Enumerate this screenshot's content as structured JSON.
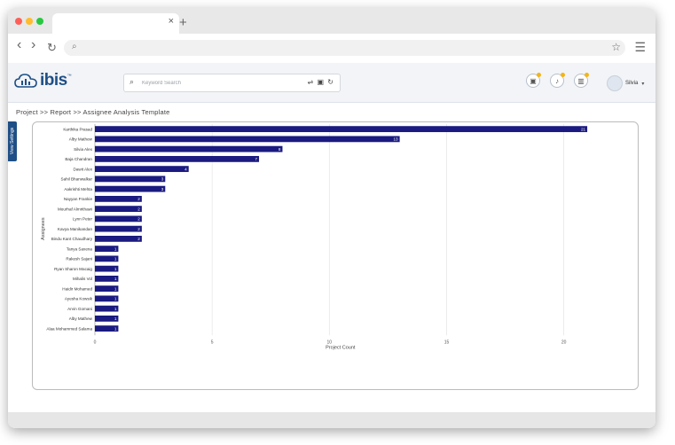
{
  "browser": {
    "tab_close": "×",
    "new_tab": "+",
    "back": "‹",
    "forward": "›",
    "reload": "↻",
    "search_glyph": "⌕",
    "star": "☆",
    "menu": "☰",
    "window_dots": [
      "#ff5f57",
      "#febc2e",
      "#28c840"
    ]
  },
  "app": {
    "logo_text": "ibis",
    "logo_tm": "™",
    "logo_icon": "cloud-icon",
    "brand_color": "#1e4f86"
  },
  "search": {
    "placeholder": "Keyword Search",
    "tools": "⇌ ▣ ↻"
  },
  "header_icons": [
    {
      "name": "photo-icon",
      "glyph": "▣"
    },
    {
      "name": "bell-icon",
      "glyph": "♪"
    },
    {
      "name": "chart-icon",
      "glyph": "▥"
    }
  ],
  "user": {
    "name": "Silvia",
    "caret": "▾"
  },
  "breadcrumb": "Project >> Report >> Assignee Analysis Template",
  "sidebar": {
    "view_settings_label": "View Settings"
  },
  "chart_data": {
    "type": "bar",
    "orientation": "horizontal",
    "xlabel": "Project Count",
    "ylabel": "Assignees",
    "xlim": [
      0,
      22
    ],
    "xticks": [
      0,
      5,
      10,
      15,
      20
    ],
    "grid": true,
    "bar_color": "#1a1a80",
    "categories": [
      "Karthika Prasad",
      "Alby Mathew",
      "Silvia Alex",
      "Baja Chandran",
      "Dawit Alex",
      "Sahil Bhanwalkar",
      "Aakrishti Mehta",
      "Nayyan Frankie",
      "Mourhaf Almrithawi",
      "Lynn Peter",
      "Kavya Manikandan",
      "Bindu Kant Chaudhary",
      "Tanya Saxena",
      "Rakesh Sajani",
      "Ryan Sharon Macaig",
      "Mihalis Vol",
      "Haidir Mohamed",
      "Ayesha Kowsik",
      "Arvin Gomani",
      "Alby Mathew",
      "Alaa Mohammed Salama"
    ],
    "values": [
      21,
      13,
      8,
      7,
      4,
      3,
      3,
      2,
      2,
      2,
      2,
      2,
      1,
      1,
      1,
      1,
      1,
      1,
      1,
      1,
      1
    ]
  }
}
